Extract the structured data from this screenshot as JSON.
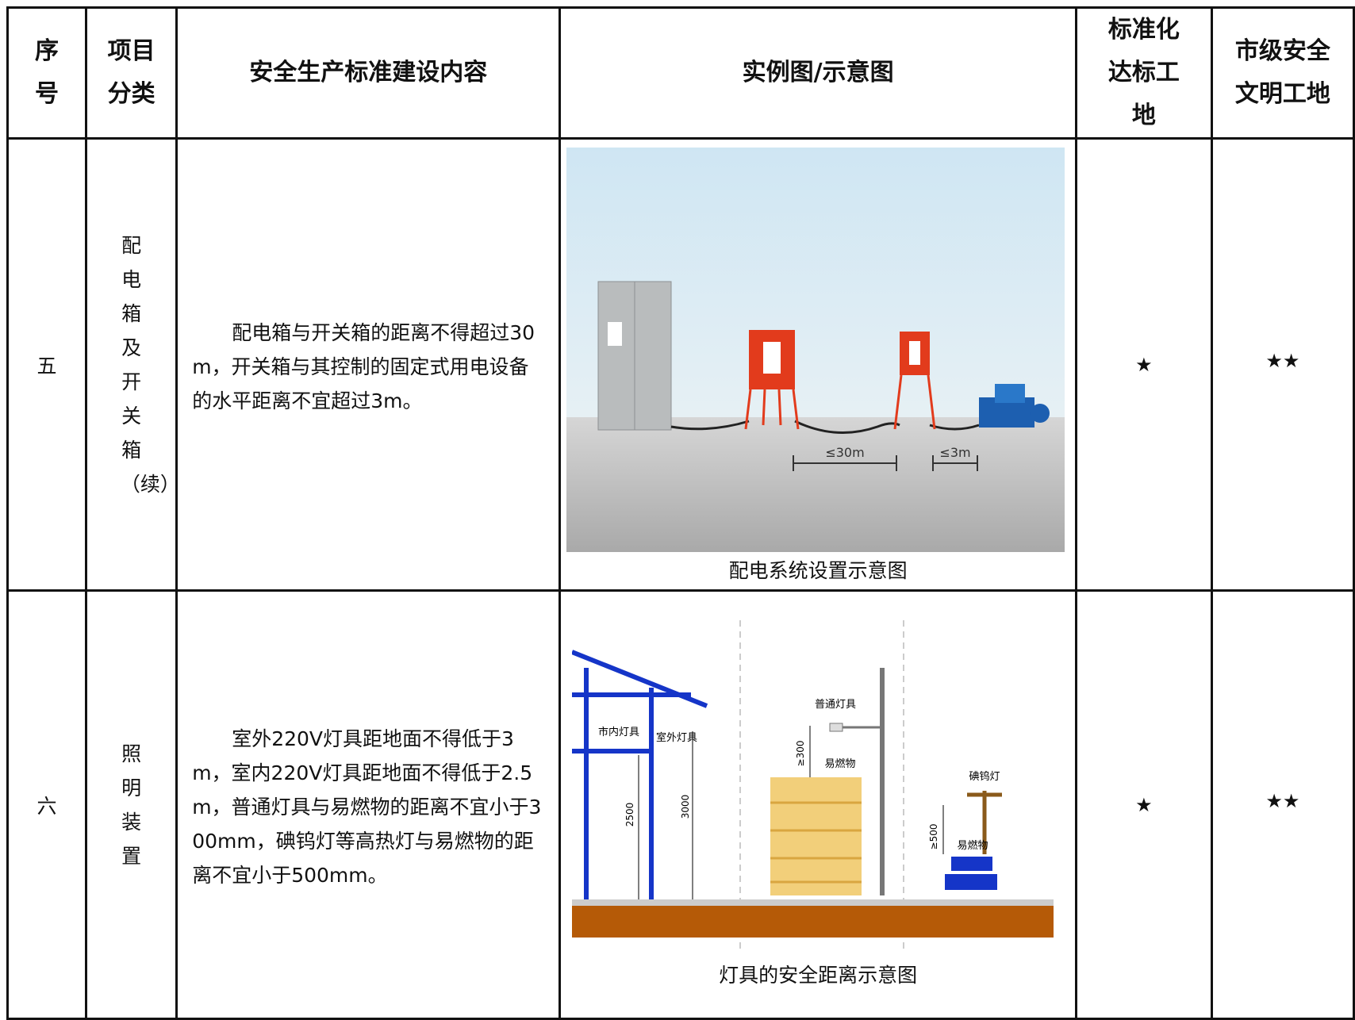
{
  "table": {
    "header": [
      "序号",
      "项目分类",
      "安全生产标准建设内容",
      "实例图/示意图",
      "标准化达标工地",
      "市级安全文明工地"
    ],
    "rows": [
      {
        "number": "五",
        "category": "配电箱及开关箱（续）",
        "content": "配电箱与开关箱的距离不得超过30m，开关箱与其控制的固定式用电设备的水平距离不宜超过3m。",
        "figure": {
          "caption": "配电系统设置示意图",
          "labels": [
            "≤30m",
            "≤3m"
          ]
        },
        "standard": "★",
        "city": "★★"
      },
      {
        "number": "六",
        "category": "照明装置",
        "content": "室外220V灯具距地面不得低于3m，室内220V灯具距地面不得低于2.5m，普通灯具与易燃物的距离不宜小于300mm，碘钨灯等高热灯与易燃物的距离不宜小于500mm。",
        "figure": {
          "caption": "灯具的安全距离示意图",
          "labels": [
            "市内灯具",
            "室外灯具",
            "普通灯具",
            "易燃物",
            "碘钨灯",
            "易燃物",
            "2500",
            "3000",
            "≥300",
            "≥500"
          ]
        },
        "standard": "★",
        "city": "★★"
      }
    ]
  }
}
